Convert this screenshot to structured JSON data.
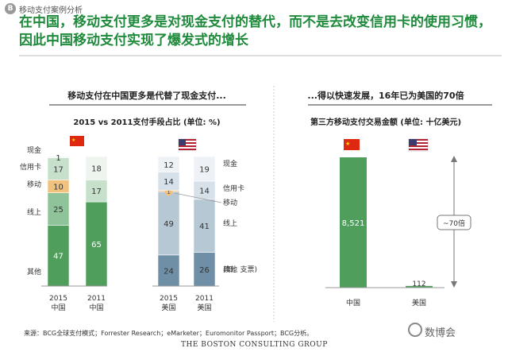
{
  "header": {
    "badge": "B",
    "section_label": "移动支付案例分析",
    "headline": "在中国，移动支付更多是对现金支付的替代，而不是去改变信用卡的使用习惯，因此中国移动支付实现了爆发式的增长"
  },
  "left_panel": {
    "subtitle": "移动支付在中国更多是代替了现金支付...",
    "chart_title": "2015 vs 2011支付手段占比 (单位: %)"
  },
  "right_panel": {
    "subtitle": "...得以快速发展，16年已为美国的70倍",
    "chart_title": "第三方移动支付交易金额 (单位: 十亿美元)",
    "annotation": "~70倍"
  },
  "colors": {
    "cash": "#4f9e5b",
    "credit": "#8fc49a",
    "mobile": "#f1c27d",
    "online": "#c6e0cb",
    "other": "#eef5ef",
    "us_cash": "#6f8fa6",
    "us_credit": "#b7c8d5",
    "us_online": "#d6e1ea",
    "us_other": "#eef2f6",
    "headline": "#1f8a3c"
  },
  "chart_data": [
    {
      "type": "bar",
      "stacked": true,
      "title": "2015 vs 2011支付手段占比 (单位: %)",
      "categories": [
        "2015\n中国",
        "2011\n中国",
        "2015\n美国",
        "2011\n美国"
      ],
      "series": [
        {
          "name": "现金",
          "values": [
            47,
            65,
            24,
            26
          ]
        },
        {
          "name": "信用卡",
          "values": [
            25,
            0,
            49,
            41
          ]
        },
        {
          "name": "移动",
          "values": [
            10,
            0,
            1,
            null
          ]
        },
        {
          "name": "线上",
          "values": [
            17,
            17,
            14,
            14
          ]
        },
        {
          "name": "其他",
          "values": [
            1,
            18,
            12,
            19
          ]
        }
      ],
      "china_labels": [
        "其他",
        "线上",
        "移动",
        "信用卡",
        "现金"
      ],
      "us_labels": [
        "其他\n(如，支票)",
        "线上",
        "移动",
        "信用卡",
        "现金"
      ],
      "x_labels": [
        [
          "2015",
          "中国"
        ],
        [
          "2011",
          "中国"
        ],
        [
          "2015",
          "美国"
        ],
        [
          "2011",
          "美国"
        ]
      ]
    },
    {
      "type": "bar",
      "title": "第三方移动支付交易金额 (单位: 十亿美元)",
      "categories": [
        "中国",
        "美国"
      ],
      "values": [
        8521,
        112
      ],
      "value_labels": [
        "8,521",
        "112"
      ]
    }
  ],
  "footer": {
    "source": "来源：BCG全球支付模式；Forrester Research；eMarketer；Euromonitor Passport；BCG分析。",
    "brand": "THE BOSTON CONSULTING GROUP",
    "watermark": "数博会"
  }
}
